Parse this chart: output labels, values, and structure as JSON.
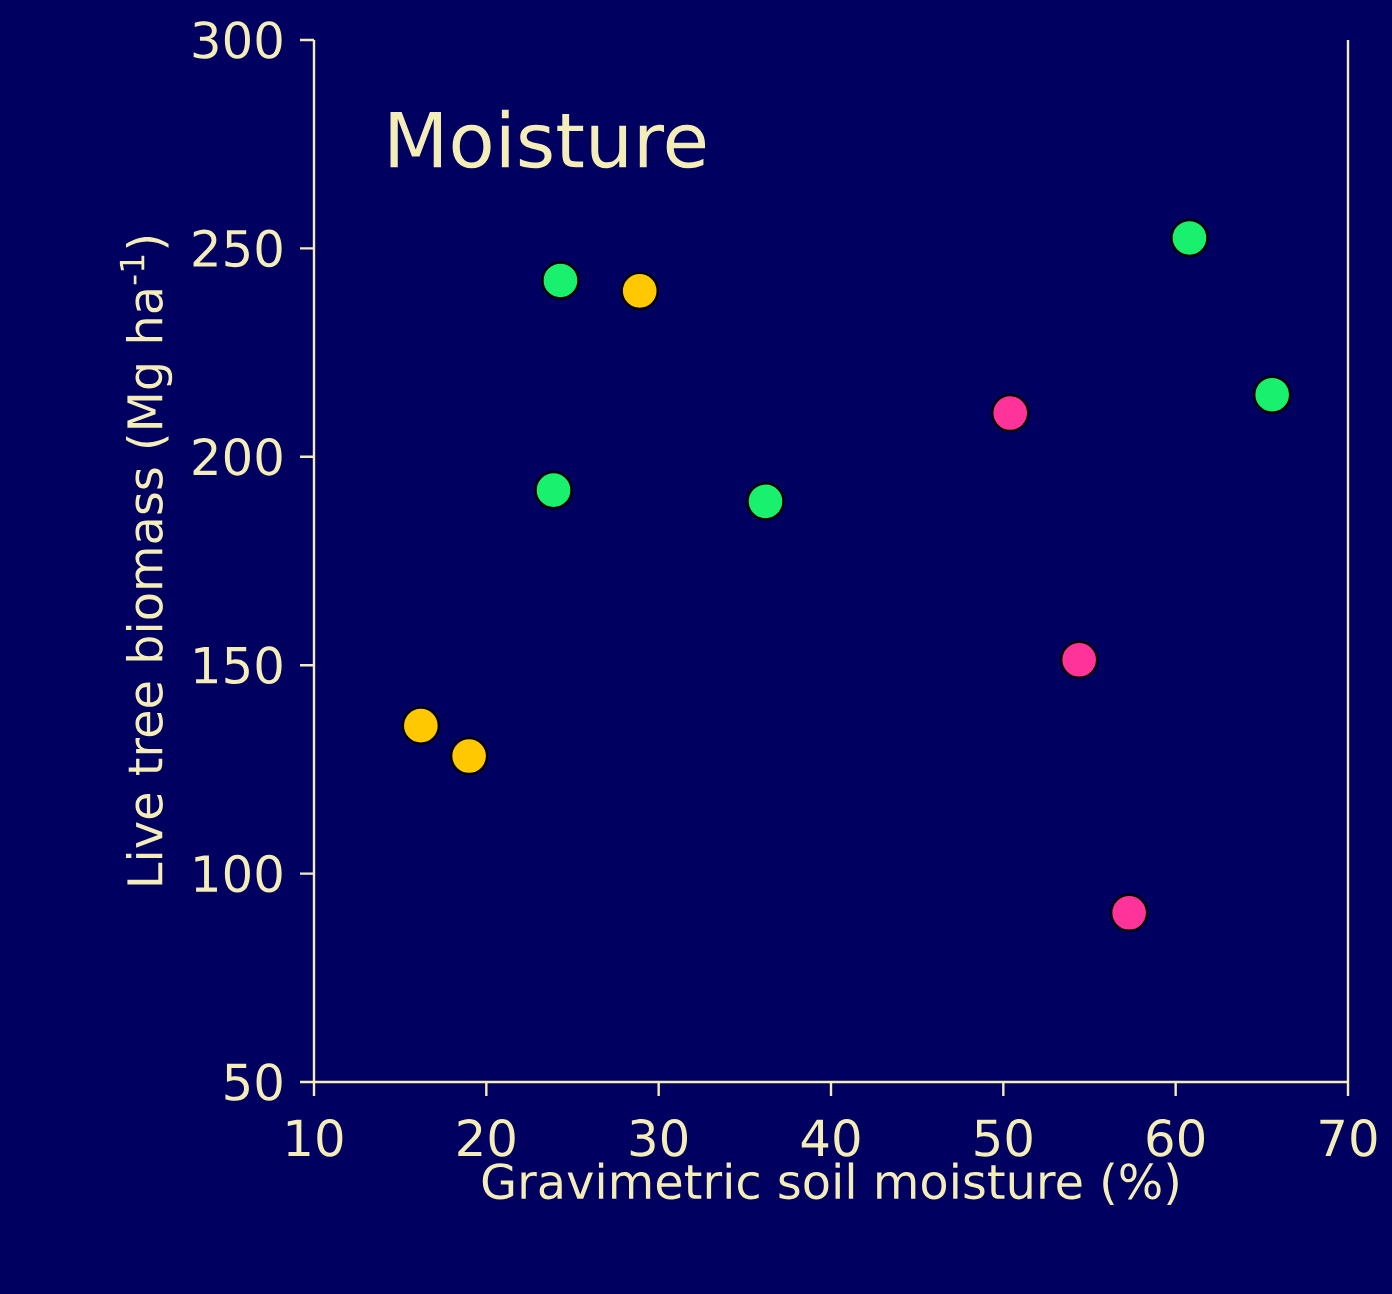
{
  "chart_data": {
    "type": "scatter",
    "title": "Moisture",
    "xlabel": "Gravimetric soil moisture (%)",
    "ylabel": "Live tree biomass (Mg ha$^{-1}$)",
    "series": [
      {
        "color": "#ffc800",
        "x": [
          16.2,
          19.0,
          28.9
        ],
        "values": [
          135.5,
          128.2,
          239.8
        ]
      },
      {
        "color": "#19f06e",
        "x": [
          24.3,
          23.9,
          36.2,
          60.8,
          65.6
        ],
        "values": [
          242.3,
          192.0,
          189.3,
          252.5,
          214.9
        ]
      },
      {
        "color": "#ff3399",
        "x": [
          50.4,
          54.4,
          57.3
        ],
        "values": [
          210.5,
          151.3,
          90.6
        ]
      }
    ],
    "marker": "circle",
    "grid": false,
    "xlim": [
      10,
      70
    ],
    "xticks": [
      10,
      20,
      30,
      40,
      50,
      60,
      70
    ],
    "ylim": [
      50,
      300
    ],
    "yticks": [
      50,
      100,
      150,
      200,
      250,
      300
    ]
  }
}
